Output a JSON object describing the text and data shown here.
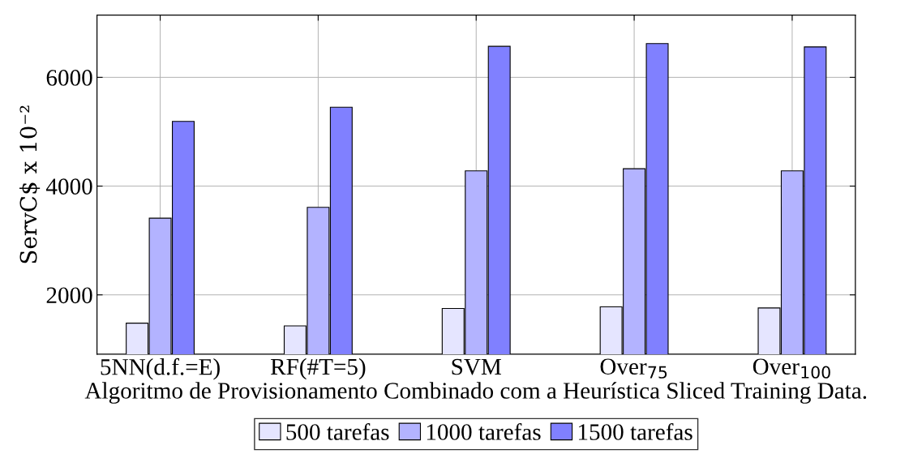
{
  "chart_data": {
    "type": "bar",
    "xlabel": "Algoritmo de Provisionamento Combinado com a Heurística Sliced Training Data.",
    "ylabel": "ServC$ x 10⁻²",
    "categories": [
      "5NN(d.f.=E)",
      "RF(#T=5)",
      "SVM",
      "Over$_{75}$",
      "Over$_{100}$"
    ],
    "series": [
      {
        "name": "500 tarefas",
        "color": "#e5e5ff",
        "values": [
          1480,
          1430,
          1750,
          1780,
          1760
        ]
      },
      {
        "name": "1000 tarefas",
        "color": "#b3b3ff",
        "values": [
          3410,
          3610,
          4280,
          4320,
          4280
        ]
      },
      {
        "name": "1500 tarefas",
        "color": "#8080ff",
        "values": [
          5190,
          5450,
          6570,
          6620,
          6560
        ]
      }
    ],
    "ylim": [
      909,
      7145
    ],
    "yticks": [
      2000,
      4000,
      6000
    ],
    "grid": true,
    "legend": "bottom"
  }
}
